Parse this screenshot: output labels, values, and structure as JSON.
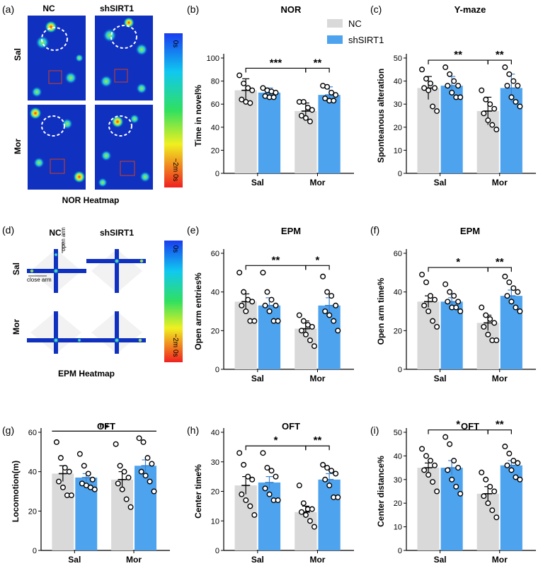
{
  "colors": {
    "nc": "#d9d9d9",
    "shsirt1": "#4da3ee",
    "heatmap_bg": "#1030c0",
    "point_stroke": "#000000"
  },
  "panel_labels": [
    "(a)",
    "(b)",
    "(c)",
    "(d)",
    "(e)",
    "(f)",
    "(g)",
    "(h)",
    "(i)"
  ],
  "heatmap_nor": {
    "col_headers": [
      "NC",
      "shSIRT1"
    ],
    "row_headers": [
      "Sal",
      "Mor"
    ],
    "caption": "NOR Heatmap",
    "scale_top": "0s",
    "scale_bottom": "~2m 0s"
  },
  "heatmap_epm": {
    "col_headers": [
      "NC",
      "shSIRT1"
    ],
    "row_headers": [
      "Sal",
      "Mor"
    ],
    "caption": "EPM Heatmap",
    "scale_top": "0s",
    "scale_bottom": "~2m 0s",
    "open_arm_label": "open arm",
    "close_arm_label": "close arm"
  },
  "legend": {
    "entries": [
      "NC",
      "shSIRT1"
    ]
  },
  "chart_data": [
    {
      "type": "bar",
      "panel": "(b)",
      "title": "NOR",
      "ylabel": "Time in novel%",
      "categories": [
        "Sal",
        "Mor"
      ],
      "ylim": [
        0,
        100
      ],
      "yticks": [
        0,
        20,
        40,
        60,
        80,
        100
      ],
      "series": [
        {
          "name": "NC",
          "values": [
            72,
            54
          ],
          "errors": [
            10,
            7
          ],
          "points": [
            [
              85,
              78,
              74,
              72,
              64,
              62,
              61
            ],
            [
              62,
              62,
              57,
              55,
              50,
              48,
              45
            ]
          ]
        },
        {
          "name": "shSIRT1",
          "values": [
            70,
            68
          ],
          "errors": [
            4,
            7
          ],
          "points": [
            [
              74,
              72,
              71,
              70,
              67,
              66,
              66
            ],
            [
              76,
              75,
              70,
              68,
              65,
              63,
              63
            ]
          ]
        }
      ],
      "significance": [
        {
          "between": "Sal-NC vs Mor-NC",
          "label": "***"
        },
        {
          "between": "Mor-NC vs Mor-shSIRT1",
          "label": "**"
        }
      ]
    },
    {
      "type": "bar",
      "panel": "(c)",
      "title": "Y-maze",
      "ylabel": "Sponteanous alteration",
      "categories": [
        "Sal",
        "Mor"
      ],
      "ylim": [
        0,
        50
      ],
      "yticks": [
        0,
        10,
        20,
        30,
        40,
        50
      ],
      "series": [
        {
          "name": "NC",
          "values": [
            37,
            27
          ],
          "errors": [
            5,
            6
          ],
          "points": [
            [
              45,
              41,
              39,
              37,
              37,
              36,
              29,
              27
            ],
            [
              36,
              32,
              30,
              28,
              26,
              23,
              21,
              19
            ]
          ]
        },
        {
          "name": "shSIRT1",
          "values": [
            38,
            37
          ],
          "errors": [
            4,
            6
          ],
          "points": [
            [
              46,
              43,
              40,
              38,
              38,
              35,
              33,
              33
            ],
            [
              46,
              43,
              40,
              38,
              38,
              33,
              31,
              29
            ]
          ]
        }
      ],
      "significance": [
        {
          "between": "Sal-NC vs Mor-NC",
          "label": "**"
        },
        {
          "between": "Mor-NC vs Mor-shSIRT1",
          "label": "**"
        }
      ]
    },
    {
      "type": "bar",
      "panel": "(e)",
      "title": "EPM",
      "ylabel": "Open arm entries%",
      "categories": [
        "Sal",
        "Mor"
      ],
      "ylim": [
        0,
        60
      ],
      "yticks": [
        0,
        20,
        40,
        60
      ],
      "series": [
        {
          "name": "NC",
          "values": [
            35,
            21
          ],
          "errors": [
            4,
            4
          ],
          "points": [
            [
              50,
              40,
              36,
              35,
              33,
              30,
              25,
              25
            ],
            [
              28,
              25,
              23,
              22,
              20,
              18,
              15,
              12
            ]
          ]
        },
        {
          "name": "shSIRT1",
          "values": [
            33,
            33
          ],
          "errors": [
            4,
            4
          ],
          "points": [
            [
              50,
              40,
              36,
              33,
              33,
              30,
              25,
              25
            ],
            [
              48,
              40,
              38,
              33,
              30,
              28,
              25,
              20
            ]
          ]
        }
      ],
      "significance": [
        {
          "between": "Sal-NC vs Mor-NC",
          "label": "**"
        },
        {
          "between": "Mor-NC vs Mor-shSIRT1",
          "label": "*"
        }
      ]
    },
    {
      "type": "bar",
      "panel": "(f)",
      "title": "EPM",
      "ylabel": "Open arm time%",
      "categories": [
        "Sal",
        "Mor"
      ],
      "ylim": [
        0,
        60
      ],
      "yticks": [
        0,
        20,
        40,
        60
      ],
      "series": [
        {
          "name": "NC",
          "values": [
            35,
            24
          ],
          "errors": [
            3,
            4
          ],
          "points": [
            [
              49,
              45,
              38,
              36,
              33,
              30,
              25,
              22
            ],
            [
              32,
              28,
              26,
              24,
              22,
              18,
              15,
              15
            ]
          ]
        },
        {
          "name": "shSIRT1",
          "values": [
            35,
            38
          ],
          "errors": [
            2,
            3
          ],
          "points": [
            [
              44,
              40,
              38,
              35,
              35,
              32,
              32,
              30
            ],
            [
              48,
              45,
              42,
              40,
              38,
              35,
              32,
              30
            ]
          ]
        }
      ],
      "significance": [
        {
          "between": "Sal-NC vs Mor-NC",
          "label": "*"
        },
        {
          "between": "Mor-NC vs Mor-shSIRT1",
          "label": "**"
        }
      ]
    },
    {
      "type": "bar",
      "panel": "(g)",
      "title": "OFT",
      "ylabel": "Locomotion(m)",
      "categories": [
        "Sal",
        "Mor"
      ],
      "ylim": [
        0,
        60
      ],
      "yticks": [
        0,
        20,
        40,
        60
      ],
      "series": [
        {
          "name": "NC",
          "values": [
            39,
            36
          ],
          "errors": [
            4,
            4
          ],
          "points": [
            [
              55,
              47,
              42,
              40,
              35,
              32,
              28,
              28
            ],
            [
              54,
              43,
              40,
              37,
              34,
              31,
              26,
              22
            ]
          ]
        },
        {
          "name": "shSIRT1",
          "values": [
            37,
            43
          ],
          "errors": [
            2,
            3
          ],
          "points": [
            [
              49,
              43,
              39,
              36,
              34,
              33,
              32,
              31
            ],
            [
              57,
              55,
              47,
              44,
              40,
              38,
              35,
              30
            ]
          ]
        }
      ],
      "significance": [
        {
          "between": "all groups",
          "label": "ns"
        }
      ]
    },
    {
      "type": "bar",
      "panel": "(h)",
      "title": "OFT",
      "ylabel": "Center time%",
      "categories": [
        "Sal",
        "Mor"
      ],
      "ylim": [
        0,
        40
      ],
      "yticks": [
        0,
        10,
        20,
        30,
        40
      ],
      "series": [
        {
          "name": "NC",
          "values": [
            22,
            13
          ],
          "errors": [
            3,
            2
          ],
          "points": [
            [
              33,
              29,
              25,
              24,
              19,
              17,
              15,
              12
            ],
            [
              22,
              16,
              14,
              14,
              13,
              12,
              10,
              8
            ]
          ]
        },
        {
          "name": "shSIRT1",
          "values": [
            23,
            24
          ],
          "errors": [
            2,
            2
          ],
          "points": [
            [
              33,
              28,
              27,
              25,
              21,
              19,
              17,
              17
            ],
            [
              29,
              28,
              27,
              26,
              24,
              22,
              18,
              18
            ]
          ]
        }
      ],
      "significance": [
        {
          "between": "Sal-NC vs Mor-NC",
          "label": "*"
        },
        {
          "between": "Mor-NC vs Mor-shSIRT1",
          "label": "**"
        }
      ]
    },
    {
      "type": "bar",
      "panel": "(i)",
      "title": "OFT",
      "ylabel": "Center distance%",
      "categories": [
        "Sal",
        "Mor"
      ],
      "ylim": [
        0,
        50
      ],
      "yticks": [
        0,
        10,
        20,
        30,
        40,
        50
      ],
      "series": [
        {
          "name": "NC",
          "values": [
            35,
            24
          ],
          "errors": [
            2,
            3
          ],
          "points": [
            [
              43,
              40,
              38,
              36,
              34,
              32,
              29,
              25
            ],
            [
              33,
              30,
              27,
              25,
              23,
              20,
              17,
              14
            ]
          ]
        },
        {
          "name": "shSIRT1",
          "values": [
            35,
            36
          ],
          "errors": [
            3,
            2
          ],
          "points": [
            [
              48,
              45,
              38,
              35,
              34,
              30,
              27,
              24
            ],
            [
              44,
              41,
              38,
              37,
              36,
              34,
              31,
              30
            ]
          ]
        }
      ],
      "significance": [
        {
          "between": "Sal-NC vs Mor-NC",
          "label": "*"
        },
        {
          "between": "Mor-NC vs Mor-shSIRT1",
          "label": "**"
        }
      ]
    }
  ]
}
